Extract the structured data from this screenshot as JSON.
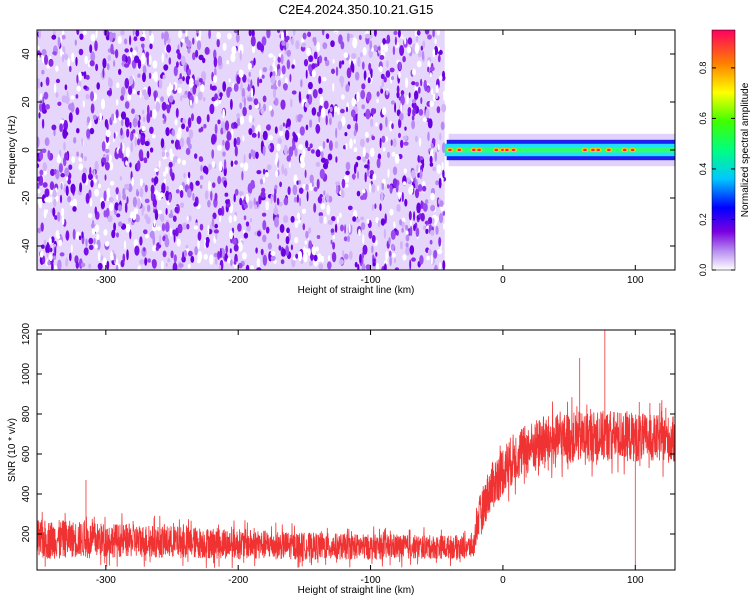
{
  "title": "C2E4.2024.350.10.21.G15",
  "chart_data": [
    {
      "type": "heatmap",
      "xlabel": "Height of straight line (km)",
      "ylabel": "Frequency (Hz)",
      "xlim": [
        -352,
        130
      ],
      "ylim": [
        -50,
        50
      ],
      "xticks": [
        -300,
        -200,
        -100,
        0,
        100
      ],
      "xtick_labels": [
        "-300",
        "-200",
        "-100",
        "0",
        "100"
      ],
      "yticks": [
        40,
        20,
        0,
        -20,
        -40
      ],
      "ytick_labels": [
        "40",
        "20",
        "0",
        "-20",
        "-40"
      ],
      "colorbar": {
        "label": "Normalized spectral amplitude",
        "range": [
          0,
          0.95
        ],
        "ticks": [
          0.0,
          0.2,
          0.4,
          0.6,
          0.8
        ],
        "tick_labels": [
          "0.0",
          "0.2",
          "0.4",
          "0.6",
          "0.8"
        ]
      },
      "regions": [
        {
          "x": [
            -352,
            -44
          ],
          "y": [
            -50,
            50
          ],
          "level": "noise",
          "amplitude": [
            0.0,
            0.15
          ]
        },
        {
          "x": [
            -44,
            130
          ],
          "y": [
            -3,
            3
          ],
          "level": "signal",
          "amplitude": [
            0.3,
            0.9
          ]
        }
      ],
      "grid": false
    },
    {
      "type": "line",
      "xlabel": "Height of straight line (km)",
      "ylabel": "SNR (10 * v/v)",
      "xlim": [
        -352,
        130
      ],
      "ylim": [
        20,
        1220
      ],
      "xticks": [
        -300,
        -200,
        -100,
        0,
        100
      ],
      "xtick_labels": [
        "-300",
        "-200",
        "-100",
        "0",
        "100"
      ],
      "yticks": [
        200,
        400,
        600,
        800,
        1000,
        1200
      ],
      "ytick_labels": [
        "200",
        "400",
        "600",
        "800",
        "1000",
        "1200"
      ],
      "series_color": "#f03232",
      "envelope": {
        "x": [
          -352,
          -330,
          -300,
          -250,
          -200,
          -150,
          -100,
          -50,
          -22,
          -20,
          -10,
          0,
          10,
          20,
          30,
          50,
          70,
          90,
          110,
          130
        ],
        "mean": [
          170,
          175,
          170,
          160,
          150,
          140,
          135,
          135,
          135,
          250,
          420,
          520,
          590,
          630,
          660,
          680,
          690,
          690,
          680,
          670
        ],
        "spread": [
          120,
          110,
          100,
          95,
          90,
          80,
          75,
          70,
          70,
          110,
          140,
          150,
          150,
          150,
          150,
          150,
          150,
          150,
          140,
          140
        ]
      },
      "grid": false
    }
  ]
}
